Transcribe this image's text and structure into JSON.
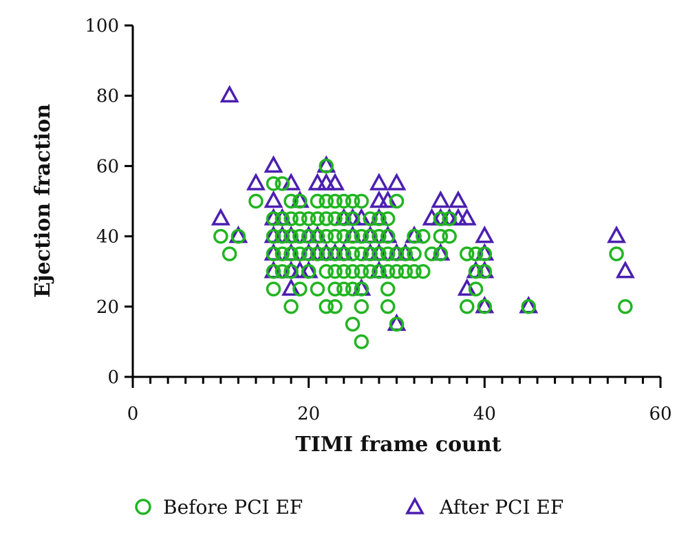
{
  "chart_data": {
    "type": "scatter",
    "title": "",
    "xlabel": "TIMI frame count",
    "ylabel": "Ejection fraction",
    "xlim": [
      0,
      60
    ],
    "ylim": [
      0,
      100
    ],
    "xticks": [
      "0",
      "20",
      "40",
      "60"
    ],
    "yticks": [
      "0",
      "20",
      "40",
      "60",
      "80",
      "100"
    ],
    "grid": false,
    "legend_position": "bottom",
    "series": [
      {
        "name": "Before PCI EF",
        "marker": "circle",
        "color": "#22b422",
        "points": [
          [
            10,
            40
          ],
          [
            11,
            35
          ],
          [
            12,
            40
          ],
          [
            14,
            50
          ],
          [
            16,
            25
          ],
          [
            16,
            30
          ],
          [
            16,
            35
          ],
          [
            16,
            40
          ],
          [
            16,
            45
          ],
          [
            16,
            55
          ],
          [
            17,
            30
          ],
          [
            17,
            35
          ],
          [
            17,
            40
          ],
          [
            17,
            45
          ],
          [
            17,
            55
          ],
          [
            18,
            20
          ],
          [
            18,
            30
          ],
          [
            18,
            35
          ],
          [
            18,
            40
          ],
          [
            18,
            45
          ],
          [
            18,
            50
          ],
          [
            19,
            25
          ],
          [
            19,
            35
          ],
          [
            19,
            40
          ],
          [
            19,
            45
          ],
          [
            19,
            50
          ],
          [
            20,
            30
          ],
          [
            20,
            35
          ],
          [
            20,
            40
          ],
          [
            20,
            45
          ],
          [
            21,
            25
          ],
          [
            21,
            35
          ],
          [
            21,
            40
          ],
          [
            21,
            45
          ],
          [
            21,
            50
          ],
          [
            22,
            20
          ],
          [
            22,
            30
          ],
          [
            22,
            35
          ],
          [
            22,
            40
          ],
          [
            22,
            45
          ],
          [
            22,
            50
          ],
          [
            22,
            60
          ],
          [
            23,
            20
          ],
          [
            23,
            25
          ],
          [
            23,
            30
          ],
          [
            23,
            35
          ],
          [
            23,
            40
          ],
          [
            23,
            45
          ],
          [
            23,
            50
          ],
          [
            24,
            25
          ],
          [
            24,
            30
          ],
          [
            24,
            35
          ],
          [
            24,
            40
          ],
          [
            24,
            45
          ],
          [
            24,
            50
          ],
          [
            25,
            15
          ],
          [
            25,
            25
          ],
          [
            25,
            30
          ],
          [
            25,
            35
          ],
          [
            25,
            40
          ],
          [
            25,
            45
          ],
          [
            25,
            50
          ],
          [
            26,
            10
          ],
          [
            26,
            20
          ],
          [
            26,
            25
          ],
          [
            26,
            30
          ],
          [
            26,
            35
          ],
          [
            26,
            40
          ],
          [
            26,
            50
          ],
          [
            27,
            30
          ],
          [
            27,
            35
          ],
          [
            27,
            40
          ],
          [
            27,
            45
          ],
          [
            28,
            30
          ],
          [
            28,
            35
          ],
          [
            28,
            40
          ],
          [
            28,
            45
          ],
          [
            29,
            20
          ],
          [
            29,
            25
          ],
          [
            29,
            30
          ],
          [
            29,
            35
          ],
          [
            29,
            40
          ],
          [
            29,
            45
          ],
          [
            30,
            15
          ],
          [
            30,
            30
          ],
          [
            30,
            35
          ],
          [
            30,
            50
          ],
          [
            31,
            30
          ],
          [
            31,
            35
          ],
          [
            32,
            30
          ],
          [
            32,
            35
          ],
          [
            32,
            40
          ],
          [
            33,
            30
          ],
          [
            33,
            40
          ],
          [
            34,
            35
          ],
          [
            35,
            35
          ],
          [
            35,
            40
          ],
          [
            35,
            45
          ],
          [
            36,
            40
          ],
          [
            36,
            45
          ],
          [
            38,
            20
          ],
          [
            38,
            35
          ],
          [
            39,
            25
          ],
          [
            39,
            30
          ],
          [
            39,
            35
          ],
          [
            40,
            20
          ],
          [
            40,
            30
          ],
          [
            40,
            35
          ],
          [
            45,
            20
          ],
          [
            55,
            35
          ],
          [
            56,
            20
          ]
        ]
      },
      {
        "name": "After PCI EF",
        "marker": "triangle",
        "color": "#4b1fb0",
        "points": [
          [
            10,
            45
          ],
          [
            11,
            80
          ],
          [
            12,
            40
          ],
          [
            14,
            55
          ],
          [
            16,
            30
          ],
          [
            16,
            35
          ],
          [
            16,
            40
          ],
          [
            16,
            45
          ],
          [
            16,
            50
          ],
          [
            16,
            60
          ],
          [
            17,
            40
          ],
          [
            17,
            45
          ],
          [
            18,
            25
          ],
          [
            18,
            30
          ],
          [
            18,
            35
          ],
          [
            18,
            40
          ],
          [
            18,
            55
          ],
          [
            19,
            30
          ],
          [
            19,
            50
          ],
          [
            20,
            30
          ],
          [
            20,
            35
          ],
          [
            20,
            40
          ],
          [
            21,
            35
          ],
          [
            21,
            40
          ],
          [
            21,
            55
          ],
          [
            22,
            35
          ],
          [
            22,
            55
          ],
          [
            22,
            60
          ],
          [
            23,
            35
          ],
          [
            23,
            55
          ],
          [
            24,
            35
          ],
          [
            24,
            45
          ],
          [
            25,
            40
          ],
          [
            25,
            45
          ],
          [
            26,
            25
          ],
          [
            26,
            45
          ],
          [
            27,
            35
          ],
          [
            27,
            40
          ],
          [
            28,
            30
          ],
          [
            28,
            35
          ],
          [
            28,
            45
          ],
          [
            28,
            50
          ],
          [
            28,
            55
          ],
          [
            29,
            40
          ],
          [
            29,
            50
          ],
          [
            30,
            15
          ],
          [
            30,
            35
          ],
          [
            30,
            55
          ],
          [
            31,
            35
          ],
          [
            32,
            40
          ],
          [
            34,
            45
          ],
          [
            35,
            35
          ],
          [
            35,
            45
          ],
          [
            35,
            50
          ],
          [
            36,
            45
          ],
          [
            37,
            45
          ],
          [
            37,
            50
          ],
          [
            38,
            25
          ],
          [
            38,
            45
          ],
          [
            39,
            30
          ],
          [
            40,
            20
          ],
          [
            40,
            30
          ],
          [
            40,
            35
          ],
          [
            40,
            40
          ],
          [
            45,
            20
          ],
          [
            55,
            40
          ],
          [
            56,
            30
          ]
        ]
      }
    ]
  }
}
